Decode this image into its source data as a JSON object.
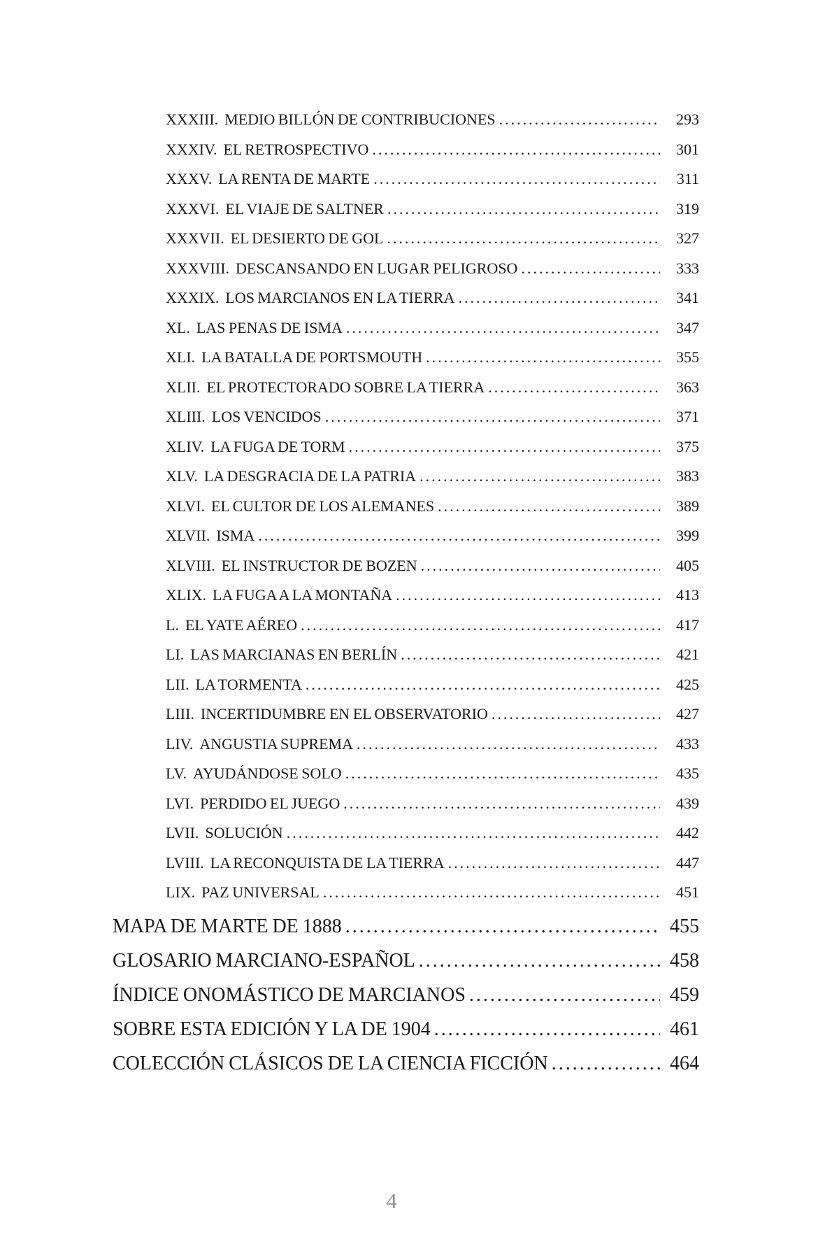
{
  "toc": {
    "chapters": [
      {
        "num": "XXXIII.",
        "title": "MEDIO BILLÓN DE CONTRIBUCIONES",
        "page": "293"
      },
      {
        "num": "XXXIV.",
        "title": "EL RETROSPECTIVO",
        "page": "301"
      },
      {
        "num": "XXXV.",
        "title": "LA RENTA DE MARTE",
        "page": "311"
      },
      {
        "num": "XXXVI.",
        "title": "EL VIAJE DE SALTNER",
        "page": "319"
      },
      {
        "num": "XXXVII.",
        "title": "EL DESIERTO DE GOL",
        "page": "327"
      },
      {
        "num": "XXXVIII.",
        "title": "DESCANSANDO EN LUGAR PELIGROSO",
        "page": "333"
      },
      {
        "num": "XXXIX.",
        "title": "LOS MARCIANOS EN LA TIERRA",
        "page": "341"
      },
      {
        "num": "XL.",
        "title": "LAS PENAS DE ISMA",
        "page": "347"
      },
      {
        "num": "XLI.",
        "title": "LA BATALLA DE PORTSMOUTH",
        "page": "355"
      },
      {
        "num": "XLII.",
        "title": "EL PROTECTORADO SOBRE LA TIERRA",
        "page": "363"
      },
      {
        "num": "XLIII.",
        "title": "LOS VENCIDOS",
        "page": "371"
      },
      {
        "num": "XLIV.",
        "title": "LA FUGA DE TORM",
        "page": "375"
      },
      {
        "num": "XLV.",
        "title": "LA DESGRACIA DE LA PATRIA",
        "page": "383"
      },
      {
        "num": "XLVI.",
        "title": "EL CULTOR DE LOS ALEMANES",
        "page": "389"
      },
      {
        "num": "XLVII.",
        "title": "ISMA",
        "page": "399"
      },
      {
        "num": "XLVIII.",
        "title": "EL INSTRUCTOR DE BOZEN",
        "page": "405"
      },
      {
        "num": "XLIX.",
        "title": "LA FUGA A LA MONTAÑA",
        "page": "413"
      },
      {
        "num": "L.",
        "title": "EL YATE AÉREO",
        "page": "417"
      },
      {
        "num": "LI.",
        "title": "LAS MARCIANAS EN BERLÍN",
        "page": "421"
      },
      {
        "num": "LII.",
        "title": "LA TORMENTA",
        "page": "425"
      },
      {
        "num": "LIII.",
        "title": "INCERTIDUMBRE EN EL OBSERVATORIO",
        "page": "427"
      },
      {
        "num": "LIV.",
        "title": "ANGUSTIA SUPREMA",
        "page": "433"
      },
      {
        "num": "LV.",
        "title": "AYUDÁNDOSE SOLO",
        "page": "435"
      },
      {
        "num": "LVI.",
        "title": "PERDIDO EL JUEGO",
        "page": "439"
      },
      {
        "num": "LVII.",
        "title": "SOLUCIÓN",
        "page": "442"
      },
      {
        "num": "LVIII.",
        "title": "LA RECONQUISTA DE LA TIERRA",
        "page": "447"
      },
      {
        "num": "LIX.",
        "title": "PAZ UNIVERSAL",
        "page": "451"
      }
    ],
    "sections": [
      {
        "title": "MAPA DE MARTE DE 1888",
        "page": "455"
      },
      {
        "title": "GLOSARIO MARCIANO-ESPAÑOL",
        "page": "458"
      },
      {
        "title": "ÍNDICE ONOMÁSTICO DE MARCIANOS",
        "page": "459"
      },
      {
        "title": "SOBRE ESTA EDICIÓN Y LA DE 1904",
        "page": "461"
      },
      {
        "title": "COLECCIÓN CLÁSICOS DE LA CIENCIA FICCIÓN",
        "page": "464"
      }
    ]
  },
  "footer": {
    "page_number": "4"
  }
}
